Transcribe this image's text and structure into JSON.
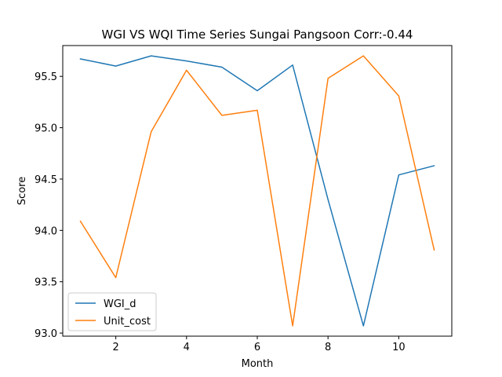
{
  "chart_data": {
    "type": "line",
    "title": "WGI VS WQI Time Series Sungai Pangsoon Corr:-0.44",
    "xlabel": "Month",
    "ylabel": "Score",
    "x": [
      1,
      2,
      3,
      4,
      5,
      6,
      7,
      8,
      9,
      10,
      11
    ],
    "xlim": [
      0.5,
      11.5
    ],
    "ylim": [
      92.97,
      95.8
    ],
    "xticks": [
      2,
      4,
      6,
      8,
      10
    ],
    "yticks": [
      93.0,
      93.5,
      94.0,
      94.5,
      95.0,
      95.5
    ],
    "ytick_labels": [
      "93.0",
      "93.5",
      "94.0",
      "94.5",
      "95.0",
      "95.5"
    ],
    "grid": false,
    "legend_position": "lower-left",
    "series": [
      {
        "name": "WGI_d",
        "color": "#1f77b4",
        "values": [
          95.67,
          95.6,
          95.7,
          95.65,
          95.59,
          95.36,
          95.61,
          94.3,
          93.07,
          94.54,
          94.63
        ]
      },
      {
        "name": "Unit_cost",
        "color": "#ff7f0e",
        "values": [
          94.09,
          93.54,
          94.96,
          95.56,
          95.12,
          95.17,
          93.07,
          95.48,
          95.7,
          95.31,
          93.81
        ]
      }
    ]
  }
}
